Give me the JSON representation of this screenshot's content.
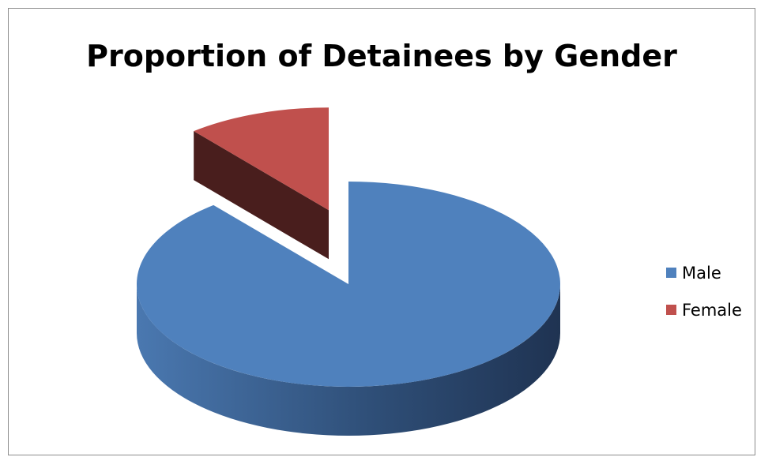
{
  "chart_data": {
    "type": "pie",
    "style": "3d-exploded",
    "title": "Proportion of Detainees by Gender",
    "categories": [
      "Male",
      "Female"
    ],
    "values": [
      89,
      11
    ],
    "colors": [
      "#4f81bd",
      "#c0504d"
    ],
    "legend": "right"
  }
}
